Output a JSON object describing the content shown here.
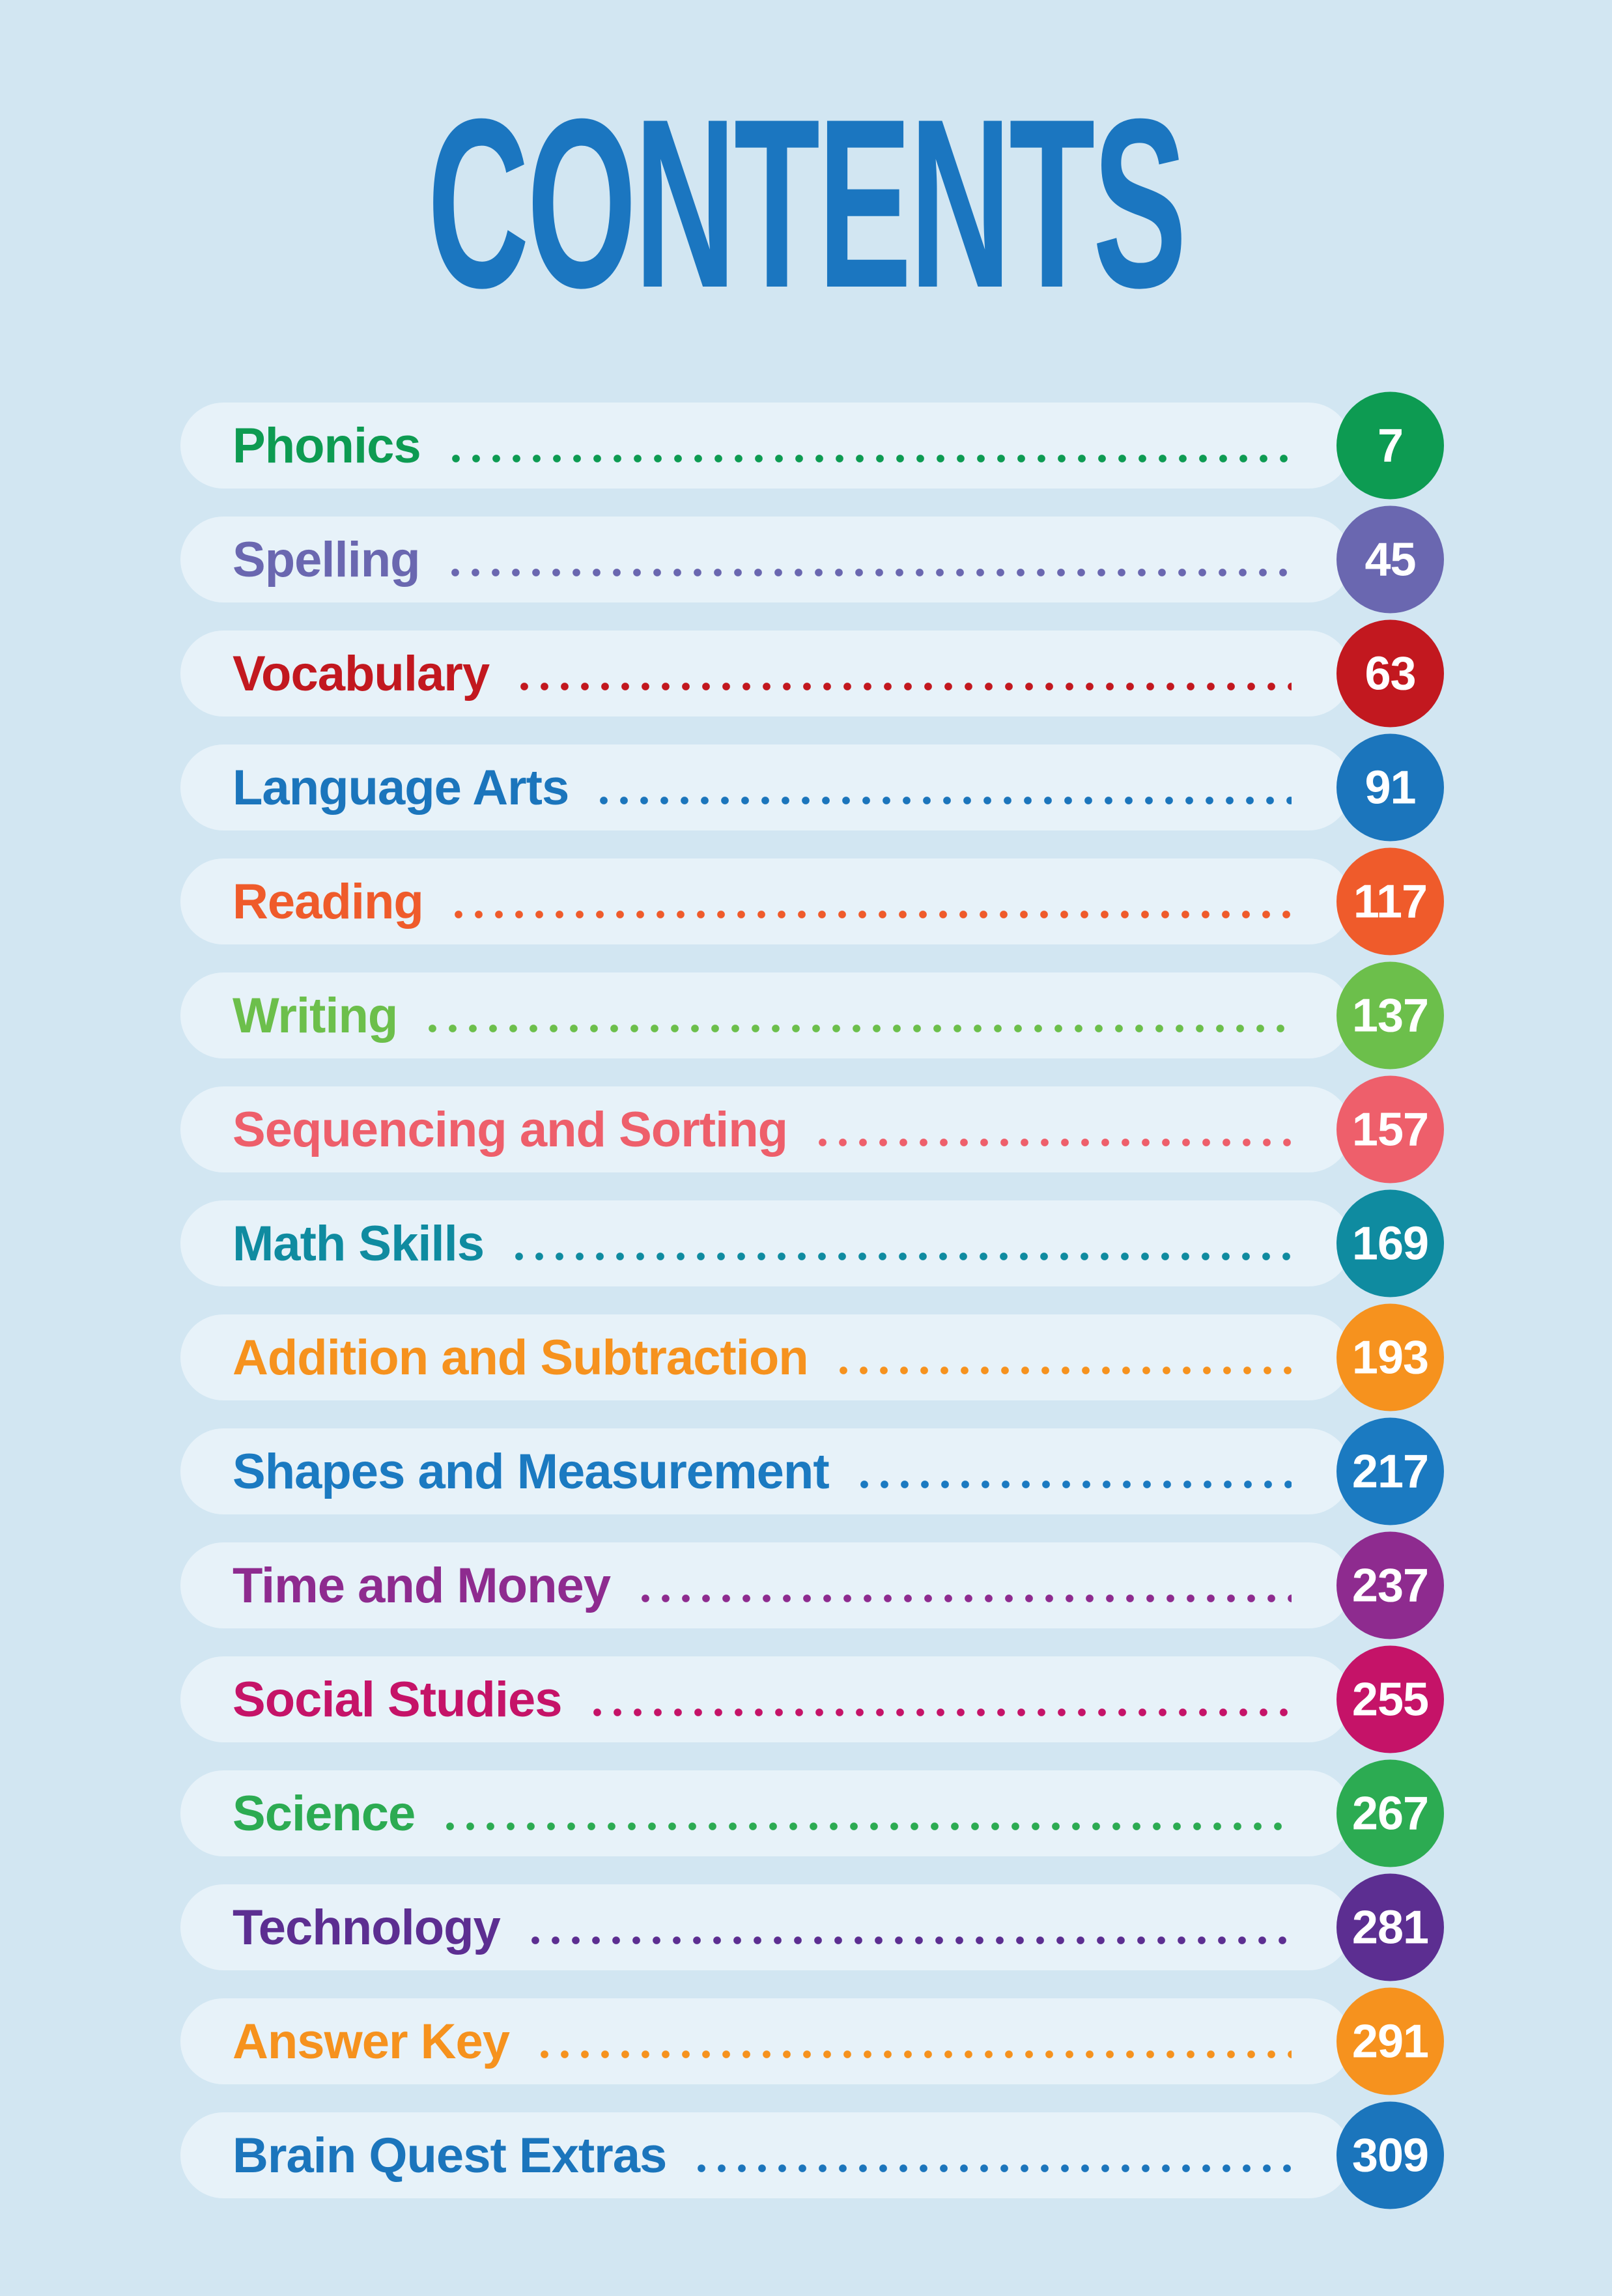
{
  "page": {
    "title": "CONTENTS",
    "background_color": "#d2e6f2",
    "row_background_color": "#e7f2f9",
    "title_color": "#1b76c0",
    "badge_text_color": "#ffffff"
  },
  "contents": {
    "items": [
      {
        "label": "Phonics",
        "page": "7",
        "color": "#0d9b52"
      },
      {
        "label": "Spelling",
        "page": "45",
        "color": "#6a67b0"
      },
      {
        "label": "Vocabulary",
        "page": "63",
        "color": "#c2181f"
      },
      {
        "label": "Language Arts",
        "page": "91",
        "color": "#1b75bc"
      },
      {
        "label": "Reading",
        "page": "117",
        "color": "#ef5b2b"
      },
      {
        "label": "Writing",
        "page": "137",
        "color": "#6cbf4b"
      },
      {
        "label": "Sequencing and Sorting",
        "page": "157",
        "color": "#ee5f6b"
      },
      {
        "label": "Math Skills",
        "page": "169",
        "color": "#0f8ba0"
      },
      {
        "label": "Addition and Subtraction",
        "page": "193",
        "color": "#f6921e"
      },
      {
        "label": "Shapes and Measurement",
        "page": "217",
        "color": "#1b7ac1"
      },
      {
        "label": "Time and Money",
        "page": "237",
        "color": "#8e2b8f"
      },
      {
        "label": "Social Studies",
        "page": "255",
        "color": "#c51368"
      },
      {
        "label": "Science",
        "page": "267",
        "color": "#2cab52"
      },
      {
        "label": "Technology",
        "page": "281",
        "color": "#5c2e91"
      },
      {
        "label": "Answer Key",
        "page": "291",
        "color": "#f6921e"
      },
      {
        "label": "Brain Quest Extras",
        "page": "309",
        "color": "#1b75bc"
      }
    ]
  }
}
